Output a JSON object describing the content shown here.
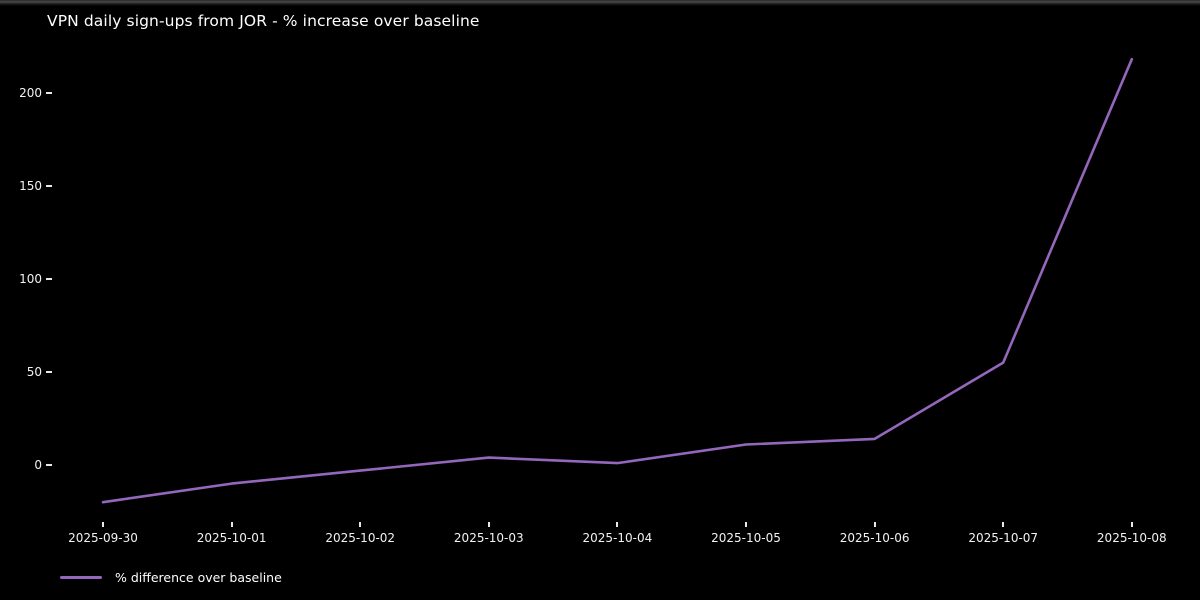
{
  "chart_data": {
    "type": "line",
    "title": "VPN daily sign-ups from JOR - % increase over baseline",
    "categories": [
      "2025-09-30",
      "2025-10-01",
      "2025-10-02",
      "2025-10-03",
      "2025-10-04",
      "2025-10-05",
      "2025-10-06",
      "2025-10-07",
      "2025-10-08"
    ],
    "series": [
      {
        "name": "% difference over baseline",
        "values": [
          -20,
          -10,
          -3,
          4,
          1,
          11,
          14,
          55,
          218
        ],
        "color": "#9467bd"
      }
    ],
    "xlabel": "",
    "ylabel": "",
    "yticks": [
      0,
      50,
      100,
      150,
      200
    ],
    "ylim": [
      -32,
      230
    ],
    "grid": false,
    "legend_position": "lower-left",
    "background": "#000000",
    "text_color": "#ffffff"
  }
}
